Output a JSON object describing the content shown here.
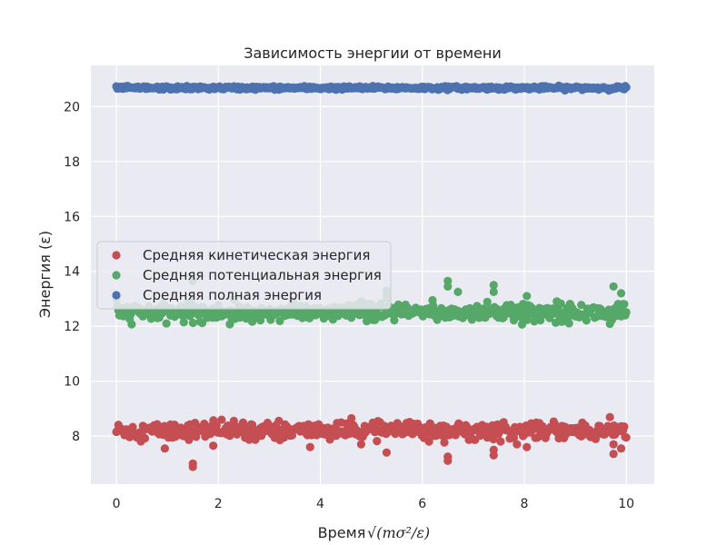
{
  "chart_data": {
    "type": "scatter",
    "title": "Зависимость энергии от времени",
    "xlabel": "Время",
    "xlabel_unit": "√(mσ²/ε)",
    "ylabel": "Энергия (ε)",
    "xlim": [
      -0.5,
      10.55
    ],
    "ylim": [
      6.25,
      21.5
    ],
    "x_ticks": [
      0,
      2,
      4,
      6,
      8,
      10
    ],
    "y_ticks": [
      8,
      10,
      12,
      14,
      16,
      18,
      20
    ],
    "grid": true,
    "legend_position": "center-left",
    "series": [
      {
        "name": "Средняя кинетическая энергия",
        "color": "#c44e52",
        "band": {
          "x_start": 0.0,
          "x_end": 10.0,
          "center": 8.2,
          "typical_spread": 0.15
        },
        "outliers": [
          [
            1.5,
            7.0
          ],
          [
            1.5,
            6.88
          ],
          [
            0.95,
            7.55
          ],
          [
            3.8,
            7.6
          ],
          [
            5.3,
            7.4
          ],
          [
            6.5,
            7.25
          ],
          [
            6.5,
            7.1
          ],
          [
            7.4,
            7.5
          ],
          [
            7.4,
            7.3
          ],
          [
            8.05,
            7.6
          ],
          [
            9.75,
            7.35
          ],
          [
            9.75,
            7.7
          ],
          [
            9.9,
            7.55
          ],
          [
            1.9,
            7.65
          ],
          [
            4.8,
            7.7
          ]
        ]
      },
      {
        "name": "Средняя потенциальная энергия",
        "color": "#55a868",
        "band": {
          "x_start": 0.0,
          "x_end": 10.0,
          "center": 12.5,
          "typical_spread": 0.15
        },
        "outliers": [
          [
            1.5,
            13.65
          ],
          [
            6.5,
            13.65
          ],
          [
            6.5,
            13.45
          ],
          [
            7.4,
            13.5
          ],
          [
            7.4,
            13.25
          ],
          [
            9.75,
            13.45
          ],
          [
            9.9,
            13.2
          ],
          [
            5.3,
            13.3
          ],
          [
            5.3,
            13.1
          ],
          [
            6.7,
            13.25
          ],
          [
            8.05,
            13.1
          ],
          [
            6.2,
            12.95
          ],
          [
            4.8,
            12.9
          ]
        ]
      },
      {
        "name": "Средняя полная энергия",
        "color": "#4c72b0",
        "band": {
          "x_start": 0.0,
          "x_end": 10.0,
          "center": 20.68,
          "typical_spread": 0.03
        },
        "outliers": []
      }
    ]
  }
}
